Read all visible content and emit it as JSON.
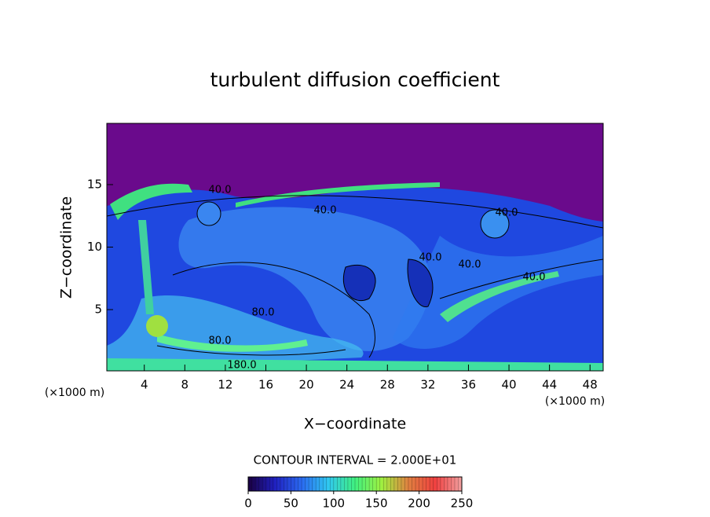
{
  "chart_data": {
    "type": "contour",
    "title": "turbulent diffusion coefficient",
    "x_label": "X−coordinate",
    "y_label": "Z−coordinate",
    "x_unit": "(×1000 m)",
    "y_unit": "(×1000 m)",
    "xlim": [
      0.3,
      49.3
    ],
    "ylim": [
      0.1,
      19.9
    ],
    "xticks": [
      4,
      8,
      12,
      16,
      20,
      24,
      28,
      32,
      36,
      40,
      44,
      48
    ],
    "yticks": [
      5,
      10,
      15
    ],
    "contour_interval_label": "CONTOUR INTERVAL = 2.000E+01",
    "contour_labels": [
      "40.0",
      "40.0",
      "40.0",
      "40.0",
      "40.0",
      "40.0",
      "80.0",
      "80.0",
      "180.0"
    ],
    "colorbar": {
      "lim": [
        0,
        250
      ],
      "ticks": [
        0,
        50,
        100,
        150,
        200,
        250
      ],
      "colors": [
        "#1a0040",
        "#2020c0",
        "#2a6af0",
        "#30c8f0",
        "#40f080",
        "#a0f040",
        "#e08040",
        "#f04040",
        "#f0a0a0"
      ]
    }
  }
}
